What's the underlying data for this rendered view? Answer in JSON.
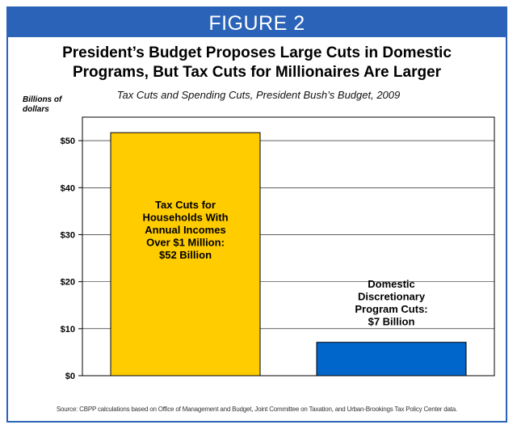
{
  "figure_label": "FIGURE 2",
  "title_line1": "President’s Budget Proposes Large Cuts in Domestic",
  "title_line2": "Programs, But Tax Cuts for Millionaires Are Larger",
  "source": "Source: CBPP calculations based on Office of Management and Budget, Joint Committee on Taxation, and Urban-Brookings Tax Policy Center data.",
  "colors": {
    "banner": "#2a63b8",
    "bar1": "#ffcc00",
    "bar2": "#0066cc"
  },
  "chart_data": {
    "type": "bar",
    "title": "Tax Cuts and Spending Cuts, President Bush’s Budget, 2009",
    "ylabel_line1": "Billions of",
    "ylabel_line2": "dollars",
    "ylim": [
      0,
      55
    ],
    "yticks": [
      0,
      10,
      20,
      30,
      40,
      50
    ],
    "ytick_labels": [
      "$0",
      "$10",
      "$20",
      "$30",
      "$40",
      "$50"
    ],
    "grid": true,
    "categories": [
      "Tax Cuts for Households With Annual Incomes Over $1 Million: $52 Billion",
      "Domestic Discretionary Program Cuts: $7 Billion"
    ],
    "values": [
      51.7,
      7.1
    ],
    "bar_labels": [
      [
        "Tax Cuts for",
        "Households With",
        "Annual Incomes",
        "Over $1 Million:",
        "$52 Billion"
      ],
      [
        "Domestic",
        "Discretionary",
        "Program Cuts:",
        "$7 Billion"
      ]
    ]
  }
}
